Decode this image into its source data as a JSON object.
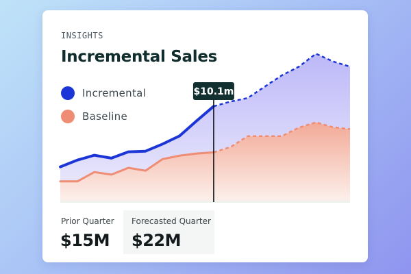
{
  "card": {
    "eyebrow": "INSIGHTS",
    "title": "Incremental Sales"
  },
  "legend": [
    {
      "label": "Incremental",
      "color": "#1b35d6"
    },
    {
      "label": "Baseline",
      "color": "#ef8c74"
    }
  ],
  "tooltip": {
    "value": "$10.1m"
  },
  "stats": [
    {
      "label": "Prior Quarter",
      "value": "$15M"
    },
    {
      "label": "Forecasted Quarter",
      "value": "$22M"
    }
  ],
  "chart_data": {
    "type": "area",
    "x": [
      0,
      1,
      2,
      3,
      4,
      5,
      6,
      7,
      8,
      9,
      10,
      11,
      12,
      13,
      14,
      15,
      16,
      17
    ],
    "forecast_start_index": 9,
    "series": [
      {
        "name": "Incremental",
        "color": "#1b35d6",
        "values": [
          1.75,
          2.1,
          2.35,
          2.2,
          2.53,
          2.56,
          2.93,
          3.35,
          4.13,
          4.88,
          5.13,
          5.31,
          5.9,
          6.48,
          6.93,
          7.6,
          7.2,
          6.93
        ]
      },
      {
        "name": "Baseline",
        "color": "#ef8c74",
        "values": [
          1.0,
          1.0,
          1.48,
          1.35,
          1.7,
          1.55,
          2.15,
          2.33,
          2.44,
          2.5,
          2.78,
          3.34,
          3.34,
          3.34,
          3.78,
          4.05,
          3.8,
          3.7
        ]
      }
    ],
    "ylim": [
      0,
      8.5
    ]
  }
}
